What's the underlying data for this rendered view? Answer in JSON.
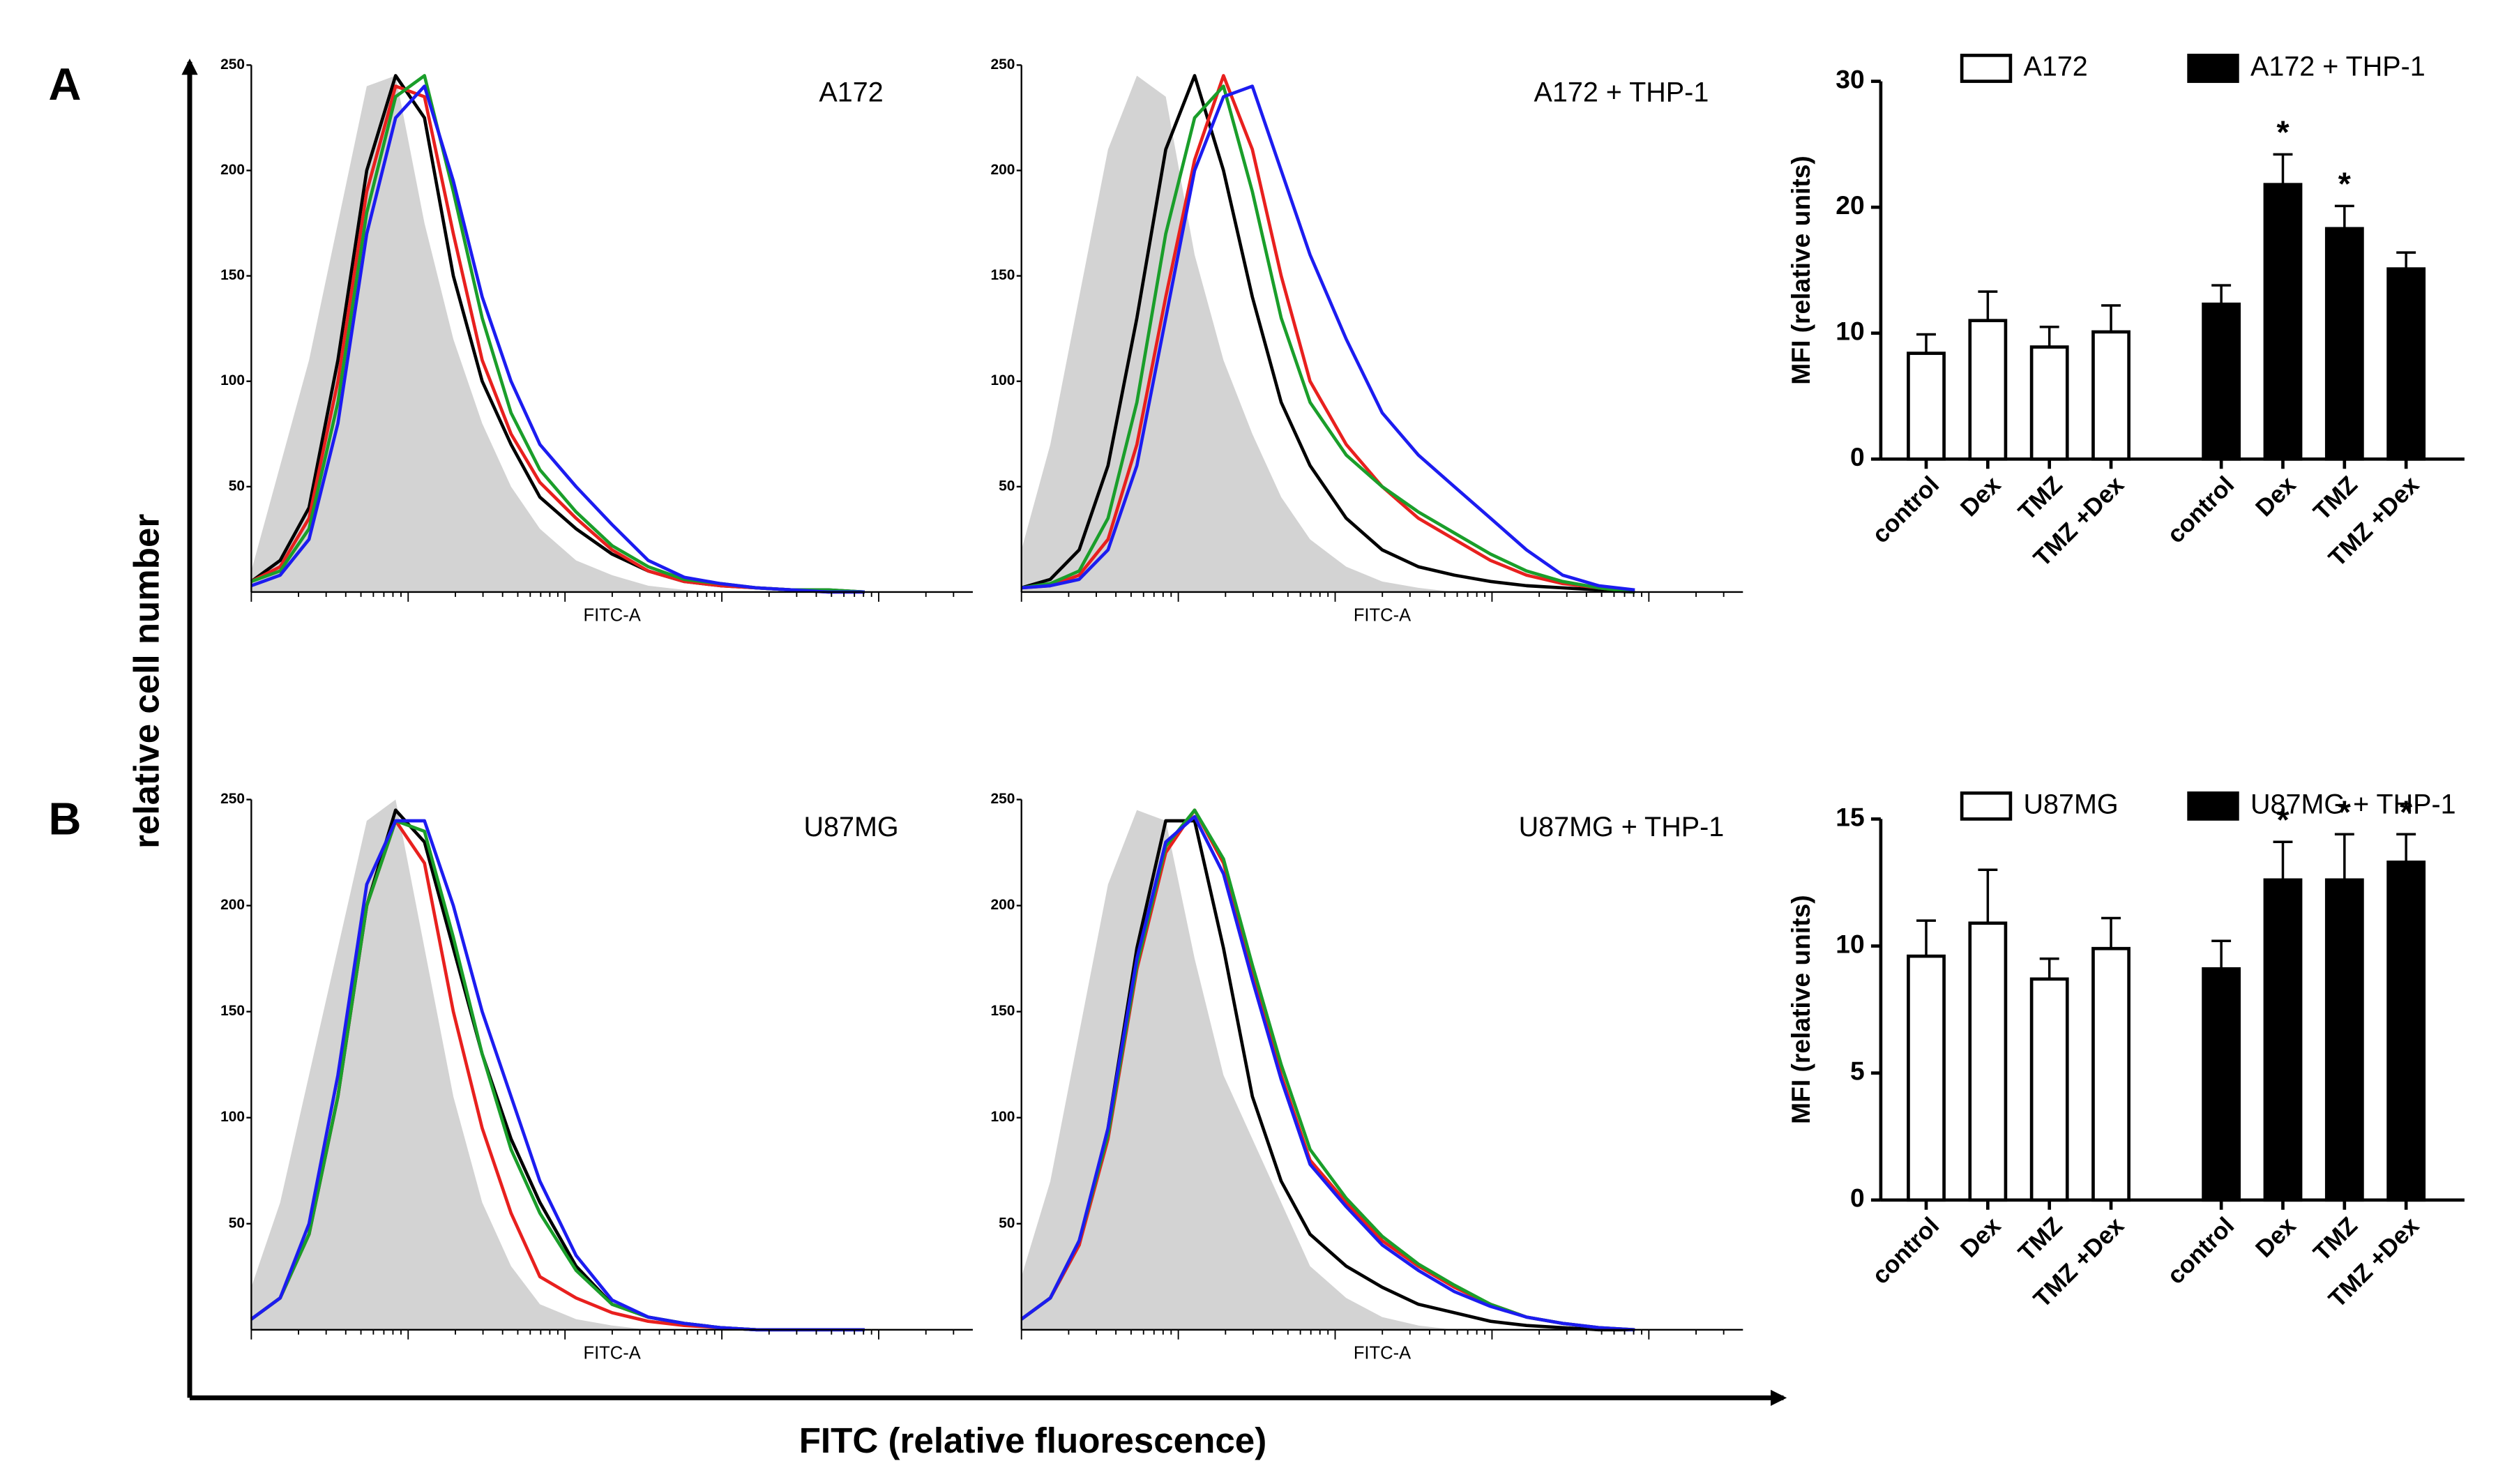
{
  "figure": {
    "panels": [
      "A",
      "B"
    ],
    "ylabel": "relative cell number",
    "xlabel": "FITC (relative fluorescence)"
  },
  "chart_data": [
    {
      "type": "line",
      "title": "A172",
      "xlabel": "FITC-A",
      "xlim": [
        0,
        100
      ],
      "ylim": [
        0,
        250
      ],
      "yticks": [
        50,
        100,
        150,
        200,
        250
      ],
      "x": [
        0,
        4,
        8,
        12,
        16,
        20,
        24,
        28,
        32,
        36,
        40,
        45,
        50,
        55,
        60,
        65,
        70,
        75,
        80,
        85
      ],
      "series": [
        {
          "color": "#d3d3d3",
          "area": true,
          "values": [
            10,
            60,
            110,
            175,
            240,
            245,
            175,
            120,
            80,
            50,
            30,
            15,
            8,
            3,
            1,
            0,
            0,
            0,
            0,
            0
          ]
        },
        {
          "color": "#000000",
          "values": [
            5,
            15,
            40,
            110,
            200,
            245,
            225,
            150,
            100,
            70,
            45,
            30,
            18,
            10,
            5,
            3,
            2,
            1,
            1,
            0
          ]
        },
        {
          "color": "#e8201e",
          "values": [
            5,
            12,
            35,
            100,
            190,
            240,
            235,
            170,
            110,
            75,
            52,
            35,
            20,
            10,
            5,
            3,
            2,
            1,
            0,
            0
          ]
        },
        {
          "color": "#1a9e2a",
          "values": [
            5,
            10,
            30,
            90,
            180,
            235,
            245,
            190,
            130,
            85,
            58,
            38,
            22,
            12,
            6,
            4,
            2,
            1,
            1,
            0
          ]
        },
        {
          "color": "#1c1cf0",
          "values": [
            3,
            8,
            25,
            80,
            170,
            225,
            240,
            195,
            140,
            100,
            70,
            50,
            32,
            15,
            7,
            4,
            2,
            1,
            0,
            0
          ]
        }
      ]
    },
    {
      "type": "line",
      "title": "A172 + THP-1",
      "xlabel": "FITC-A",
      "xlim": [
        0,
        100
      ],
      "ylim": [
        0,
        250
      ],
      "yticks": [
        50,
        100,
        150,
        200,
        250
      ],
      "x": [
        0,
        4,
        8,
        12,
        16,
        20,
        24,
        28,
        32,
        36,
        40,
        45,
        50,
        55,
        60,
        65,
        70,
        75,
        80,
        85
      ],
      "series": [
        {
          "color": "#d3d3d3",
          "area": true,
          "values": [
            20,
            70,
            140,
            210,
            245,
            235,
            160,
            110,
            75,
            45,
            25,
            12,
            5,
            2,
            0,
            0,
            0,
            0,
            0,
            0
          ]
        },
        {
          "color": "#000000",
          "values": [
            2,
            6,
            20,
            60,
            130,
            210,
            245,
            200,
            140,
            90,
            60,
            35,
            20,
            12,
            8,
            5,
            3,
            2,
            1,
            0
          ]
        },
        {
          "color": "#e8201e",
          "values": [
            2,
            3,
            8,
            25,
            70,
            140,
            205,
            245,
            210,
            150,
            100,
            70,
            50,
            35,
            25,
            15,
            8,
            4,
            2,
            0
          ]
        },
        {
          "color": "#1a9e2a",
          "values": [
            2,
            4,
            10,
            35,
            90,
            170,
            225,
            240,
            190,
            130,
            90,
            65,
            50,
            38,
            28,
            18,
            10,
            5,
            2,
            0
          ]
        },
        {
          "color": "#1c1cf0",
          "values": [
            2,
            3,
            6,
            20,
            60,
            130,
            200,
            235,
            240,
            200,
            160,
            120,
            85,
            65,
            50,
            35,
            20,
            8,
            3,
            1
          ]
        }
      ]
    },
    {
      "type": "bar",
      "ylabel": "MFI (relative units)",
      "ylim": [
        0,
        30
      ],
      "yticks": [
        0,
        10,
        20,
        30
      ],
      "series": [
        {
          "name": "A172",
          "color": "#ffffff",
          "categories": [
            "control",
            "Dex",
            "TMZ",
            "TMZ +Dex"
          ],
          "values": [
            8.4,
            11,
            8.9,
            10.1
          ],
          "errors": [
            1.5,
            2.3,
            1.6,
            2.1
          ]
        },
        {
          "name": "A172 + THP-1",
          "color": "#000000",
          "categories": [
            "control",
            "Dex",
            "TMZ",
            "TMZ +Dex"
          ],
          "values": [
            12.3,
            21.8,
            18.3,
            15.1
          ],
          "errors": [
            1.5,
            2.4,
            1.8,
            1.3
          ]
        }
      ],
      "annotations": [
        {
          "series": 1,
          "index": 1,
          "text": "*"
        },
        {
          "series": 1,
          "index": 2,
          "text": "*"
        }
      ]
    },
    {
      "type": "line",
      "title": "U87MG",
      "xlabel": "FITC-A",
      "xlim": [
        0,
        100
      ],
      "ylim": [
        0,
        250
      ],
      "yticks": [
        50,
        100,
        150,
        200,
        250
      ],
      "x": [
        0,
        4,
        8,
        12,
        16,
        20,
        24,
        28,
        32,
        36,
        40,
        45,
        50,
        55,
        60,
        65,
        70,
        75,
        80,
        85
      ],
      "series": [
        {
          "color": "#d3d3d3",
          "area": true,
          "values": [
            20,
            60,
            120,
            180,
            240,
            250,
            180,
            110,
            60,
            30,
            12,
            5,
            2,
            0,
            0,
            0,
            0,
            0,
            0,
            0
          ]
        },
        {
          "color": "#000000",
          "values": [
            5,
            15,
            45,
            110,
            200,
            245,
            230,
            180,
            130,
            90,
            60,
            30,
            12,
            6,
            3,
            1,
            0,
            0,
            0,
            0
          ]
        },
        {
          "color": "#e8201e",
          "values": [
            5,
            15,
            45,
            110,
            200,
            240,
            220,
            150,
            95,
            55,
            25,
            15,
            8,
            4,
            2,
            1,
            0,
            0,
            0,
            0
          ]
        },
        {
          "color": "#1a9e2a",
          "values": [
            5,
            15,
            45,
            110,
            200,
            240,
            235,
            185,
            130,
            85,
            55,
            28,
            12,
            6,
            3,
            1,
            0,
            0,
            0,
            0
          ]
        },
        {
          "color": "#1c1cf0",
          "values": [
            5,
            15,
            50,
            120,
            210,
            240,
            240,
            200,
            150,
            110,
            70,
            35,
            14,
            6,
            3,
            1,
            0,
            0,
            0,
            0
          ]
        }
      ]
    },
    {
      "type": "line",
      "title": "U87MG + THP-1",
      "xlabel": "FITC-A",
      "xlim": [
        0,
        100
      ],
      "ylim": [
        0,
        250
      ],
      "yticks": [
        50,
        100,
        150,
        200,
        250
      ],
      "x": [
        0,
        4,
        8,
        12,
        16,
        20,
        24,
        28,
        32,
        36,
        40,
        45,
        50,
        55,
        60,
        65,
        70,
        75,
        80,
        85
      ],
      "series": [
        {
          "color": "#d3d3d3",
          "area": true,
          "values": [
            25,
            70,
            140,
            210,
            245,
            240,
            175,
            120,
            90,
            60,
            30,
            15,
            6,
            2,
            0,
            0,
            0,
            0,
            0,
            0
          ]
        },
        {
          "color": "#000000",
          "values": [
            5,
            15,
            40,
            95,
            180,
            240,
            240,
            180,
            110,
            70,
            45,
            30,
            20,
            12,
            8,
            4,
            2,
            1,
            0,
            0
          ]
        },
        {
          "color": "#e8201e",
          "values": [
            5,
            15,
            40,
            90,
            170,
            225,
            245,
            220,
            170,
            120,
            80,
            60,
            42,
            30,
            20,
            12,
            6,
            3,
            1,
            0
          ]
        },
        {
          "color": "#1a9e2a",
          "values": [
            5,
            15,
            42,
            92,
            172,
            228,
            245,
            222,
            172,
            125,
            85,
            62,
            44,
            31,
            21,
            12,
            6,
            3,
            1,
            0
          ]
        },
        {
          "color": "#1c1cf0",
          "values": [
            5,
            15,
            42,
            95,
            175,
            230,
            242,
            215,
            165,
            118,
            78,
            58,
            40,
            28,
            18,
            11,
            6,
            3,
            1,
            0
          ]
        }
      ]
    },
    {
      "type": "bar",
      "ylabel": "MFI (relative units)",
      "ylim": [
        0,
        15
      ],
      "yticks": [
        0,
        5,
        10,
        15
      ],
      "series": [
        {
          "name": "U87MG",
          "color": "#ffffff",
          "categories": [
            "control",
            "Dex",
            "TMZ",
            "TMZ +Dex"
          ],
          "values": [
            9.6,
            10.9,
            8.7,
            9.9
          ],
          "errors": [
            1.4,
            2.1,
            0.8,
            1.2
          ]
        },
        {
          "name": "U87MG + THP-1",
          "color": "#000000",
          "categories": [
            "control",
            "Dex",
            "TMZ",
            "TMZ +Dex"
          ],
          "values": [
            9.1,
            12.6,
            12.6,
            13.3
          ],
          "errors": [
            1.1,
            1.5,
            1.8,
            1.1
          ]
        }
      ],
      "annotations": [
        {
          "series": 1,
          "index": 1,
          "text": "*"
        },
        {
          "series": 1,
          "index": 2,
          "text": "*"
        },
        {
          "series": 1,
          "index": 3,
          "text": "*"
        }
      ]
    }
  ]
}
